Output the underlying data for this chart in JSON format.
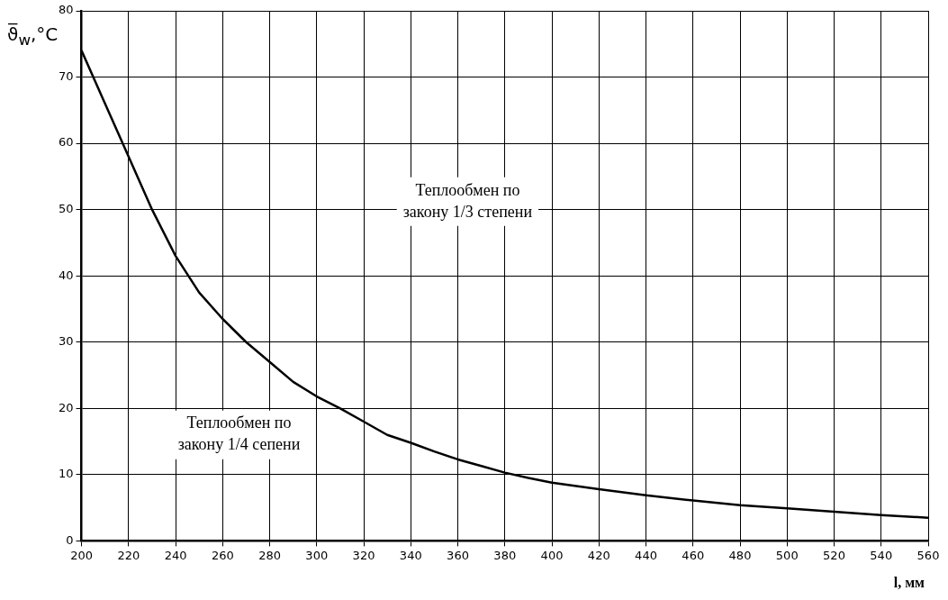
{
  "chart_data": {
    "type": "line",
    "xlabel": "l, мм",
    "ylabel": "ϑ̅$_{w}$,°C",
    "x": [
      200,
      210,
      220,
      230,
      240,
      250,
      260,
      270,
      280,
      290,
      300,
      310,
      320,
      330,
      340,
      350,
      360,
      370,
      380,
      390,
      400,
      420,
      440,
      460,
      480,
      500,
      520,
      540,
      560
    ],
    "series": [
      {
        "color": "#000000",
        "values": [
          74,
          66,
          58,
          50,
          43,
          37.5,
          33.5,
          30,
          27,
          24,
          21.8,
          20,
          18,
          16,
          14.8,
          13.5,
          12.3,
          11.3,
          10.3,
          9.5,
          8.8,
          7.8,
          6.9,
          6.1,
          5.4,
          4.9,
          4.4,
          3.9,
          3.5
        ]
      }
    ],
    "xlim": [
      200,
      560
    ],
    "xticks": [
      200,
      220,
      240,
      260,
      280,
      300,
      320,
      340,
      360,
      380,
      400,
      420,
      440,
      460,
      480,
      500,
      520,
      540,
      560
    ],
    "ylim": [
      0,
      80
    ],
    "yticks": [
      0,
      10,
      20,
      30,
      40,
      50,
      60,
      70,
      80
    ],
    "grid": true,
    "legend": false,
    "marker": "none",
    "line_style": "solid",
    "annotations": [
      "Теплообмен по\nзакону 1/3 степени",
      "Теплообмен по\nзакону 1/4 сепени"
    ]
  }
}
